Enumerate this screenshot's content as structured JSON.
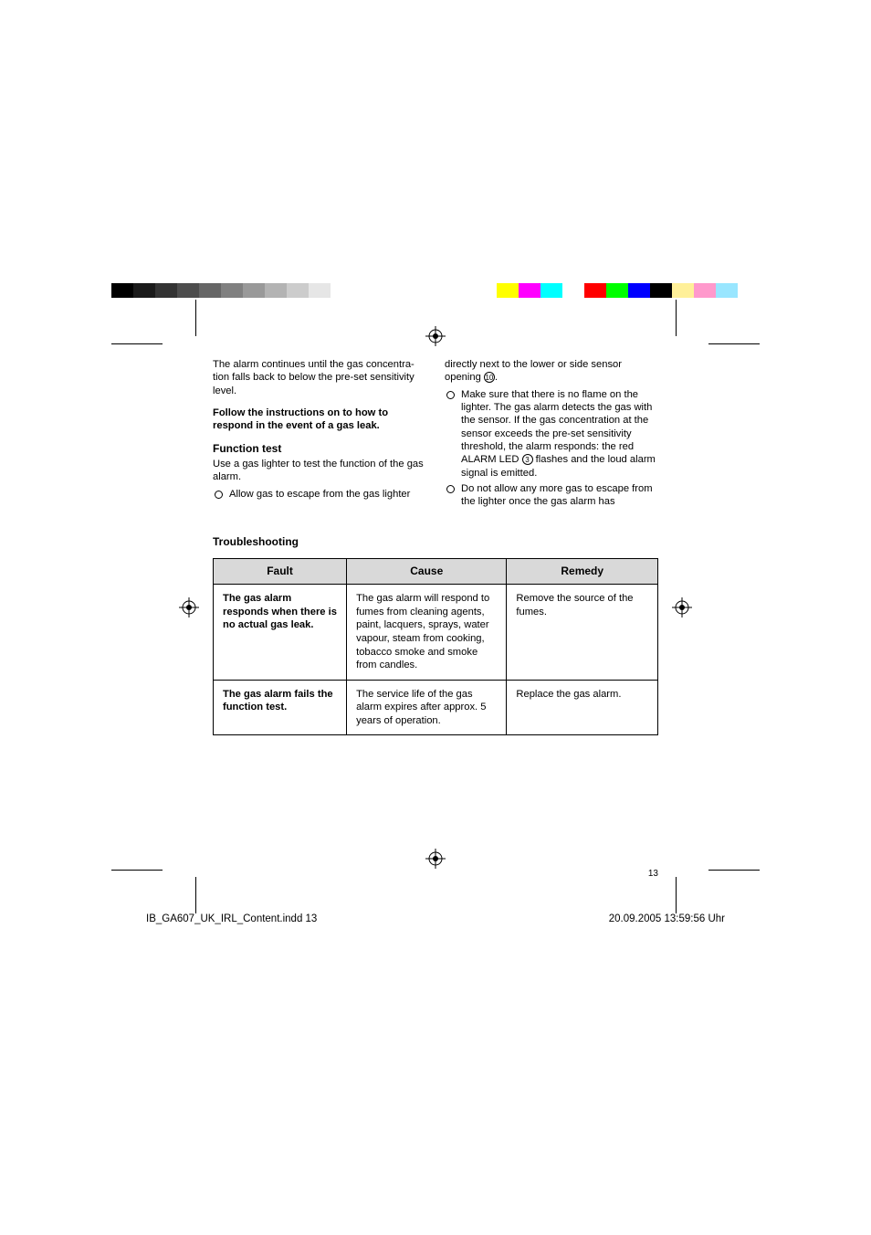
{
  "print_marks": {
    "gray_left": [
      "#000000",
      "#1a1a1a",
      "#333333",
      "#4d4d4d",
      "#666666",
      "#808080",
      "#999999",
      "#b3b3b3",
      "#cccccc",
      "#e6e6e6"
    ],
    "colors_right": [
      "#ffff00",
      "#ff00ff",
      "#00ffff",
      "#ffffff",
      "#ff0000",
      "#00ff00",
      "#0000ff",
      "#000000"
    ],
    "pastel_right": [
      "#fff099",
      "#ff99cc",
      "#99e6ff",
      "#ffffff"
    ]
  },
  "body": {
    "col_left": {
      "p1": "The alarm continues until the gas concentra­tion falls back to below the pre-set sensitivity level.",
      "p2": "Follow the instructions on to how to respond in the event of a gas leak.",
      "h_function": "Function test",
      "p3": "Use a gas lighter to test the function of the gas alarm.",
      "li1": "Allow gas to escape from the gas lighter"
    },
    "col_right": {
      "p1a": "directly next to the lower or side sensor opening ",
      "p1b": ".",
      "ref10": "⑩",
      "li1a": "Make sure that there is no flame on the lighter. The gas alarm detects the gas with the sensor. If the gas concentration at the sensor exceeds the pre-set sensi­tivity threshold, the alarm responds: the red ALARM LED ",
      "ref3": "③",
      "li1b": " flashes and the loud alarm signal is emitted.",
      "li2": "Do not allow any more gas to escape from the lighter once the gas alarm has"
    },
    "troubleshooting": {
      "heading": "Troubleshooting",
      "headers": {
        "fault": "Fault",
        "cause": "Cause",
        "remedy": "Remedy"
      },
      "rows": [
        {
          "fault": "The gas alarm responds when there is no actual gas leak.",
          "cause": "The gas alarm will respond to fumes from cleaning agents, paint, lacquers, sprays, water vapour, steam from cooking, tobacco smoke and smoke from candles.",
          "remedy": "Remove the source of the fumes."
        },
        {
          "fault": "The gas alarm fails the function test.",
          "cause": "The service life of the gas alarm expires after approx. 5 years of operation.",
          "remedy": "Replace the gas alarm."
        }
      ]
    },
    "page_number": "13"
  },
  "footer": {
    "file": "IB_GA607_UK_IRL_Content.indd   13",
    "timestamp": "20.09.2005   13:59:56 Uhr"
  },
  "style": {
    "page_bg": "#ffffff",
    "text_color": "#000000",
    "table_header_bg": "#d9d9d9",
    "table_border": "#000000",
    "body_font_size": 11.2,
    "heading_font_size": 12,
    "line_height": 1.28
  }
}
